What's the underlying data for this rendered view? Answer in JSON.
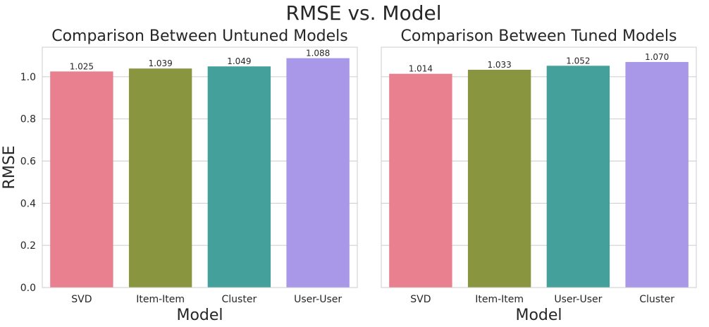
{
  "suptitle": "RMSE vs. Model",
  "chart_data": [
    {
      "type": "bar",
      "title": "Comparison Between Untuned Models",
      "xlabel": "Model",
      "ylabel": "RMSE",
      "categories": [
        "SVD",
        "Item-Item",
        "Cluster",
        "User-User"
      ],
      "values": [
        1.025,
        1.039,
        1.049,
        1.088
      ],
      "value_labels": [
        "1.025",
        "1.039",
        "1.049",
        "1.088"
      ],
      "colors": [
        "#e8808f",
        "#8a963f",
        "#44a09a",
        "#a998e8"
      ],
      "ylim": [
        0,
        1.14
      ],
      "yticks": [
        0.0,
        0.2,
        0.4,
        0.6,
        0.8,
        1.0
      ],
      "ytick_labels": [
        "0.0",
        "0.2",
        "0.4",
        "0.6",
        "0.8",
        "1.0"
      ],
      "grid": true
    },
    {
      "type": "bar",
      "title": "Comparison Between Tuned Models",
      "xlabel": "Model",
      "ylabel": "",
      "categories": [
        "SVD",
        "Item-Item",
        "User-User",
        "Cluster"
      ],
      "values": [
        1.014,
        1.033,
        1.052,
        1.07
      ],
      "value_labels": [
        "1.014",
        "1.033",
        "1.052",
        "1.070"
      ],
      "colors": [
        "#e8808f",
        "#8a963f",
        "#44a09a",
        "#a998e8"
      ],
      "ylim": [
        0,
        1.14
      ],
      "yticks": [
        0.0,
        0.2,
        0.4,
        0.6,
        0.8,
        1.0
      ],
      "ytick_labels": [
        "",
        "",
        "",
        "",
        "",
        ""
      ],
      "grid": true
    }
  ]
}
